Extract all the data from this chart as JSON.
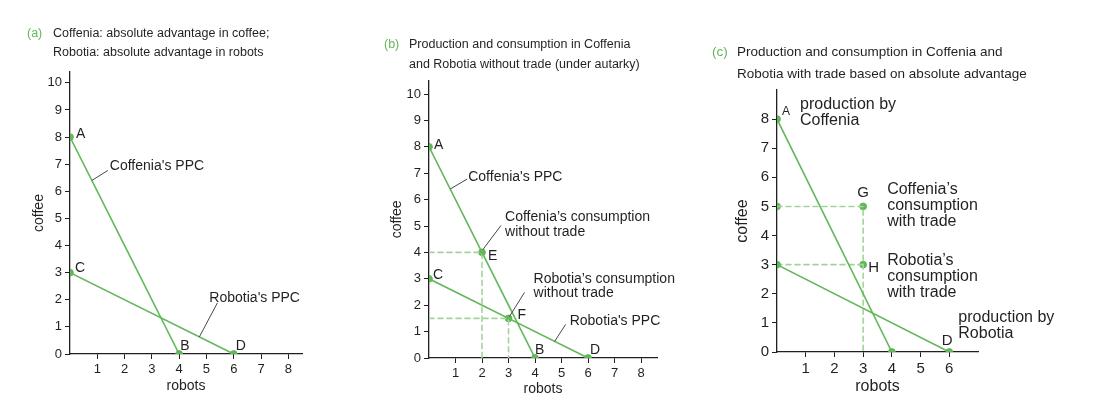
{
  "chart_data": [
    {
      "type": "line",
      "title": "(a) Coffenia: absolute advantage in coffee; Robotia: absolute advantage in robots",
      "xlabel": "robots",
      "ylabel": "coffee",
      "xlim": [
        0,
        8.5
      ],
      "xticks": [
        1,
        2,
        3,
        4,
        5,
        6,
        7,
        8
      ],
      "ylim": [
        0,
        10.4
      ],
      "yticks": [
        0,
        1,
        2,
        3,
        4,
        5,
        6,
        7,
        8,
        9,
        10
      ],
      "marker": "circle",
      "series": [
        {
          "name": "Coffenia's PPC",
          "color": "#62b75a",
          "x": [
            0,
            4
          ],
          "values": [
            8,
            0
          ]
        },
        {
          "name": "Robotia's PPC",
          "color": "#62b75a",
          "x": [
            0,
            6
          ],
          "values": [
            3,
            0
          ]
        }
      ],
      "annotations": [
        {
          "text": "A",
          "x": 0,
          "y": 8
        },
        {
          "text": "B",
          "x": 4,
          "y": 0
        },
        {
          "text": "C",
          "x": 0,
          "y": 3
        },
        {
          "text": "D",
          "x": 6,
          "y": 0
        }
      ]
    },
    {
      "type": "line",
      "title": "(b) Production and consumption in Coffenia and Robotia without trade (under autarky)",
      "xlabel": "robots",
      "ylabel": "coffee",
      "xlim": [
        0,
        8.6
      ],
      "xticks": [
        1,
        2,
        3,
        4,
        5,
        6,
        7,
        8
      ],
      "ylim": [
        0,
        10.5
      ],
      "yticks": [
        0,
        1,
        2,
        3,
        4,
        5,
        6,
        7,
        8,
        9,
        10
      ],
      "marker": "circle",
      "series": [
        {
          "name": "Coffenia's PPC",
          "color": "#62b75a",
          "x": [
            0,
            4
          ],
          "values": [
            8,
            0
          ]
        },
        {
          "name": "Robotia's PPC",
          "color": "#62b75a",
          "x": [
            0,
            6
          ],
          "values": [
            3,
            0
          ]
        },
        {
          "color": "#a3d49b",
          "x": [
            0,
            2,
            2
          ],
          "values": [
            4,
            4,
            0
          ],
          "line_style": "dashed",
          "marker": "none"
        },
        {
          "color": "#a3d49b",
          "x": [
            0,
            3,
            3
          ],
          "values": [
            1.5,
            1.5,
            0
          ],
          "line_style": "dashed",
          "marker": "none"
        },
        {
          "type": "scatter",
          "color": "#62b75a",
          "x": [
            2,
            3
          ],
          "values": [
            4,
            1.5
          ]
        }
      ],
      "annotations": [
        {
          "text": "A",
          "x": 0,
          "y": 8
        },
        {
          "text": "B",
          "x": 4,
          "y": 0
        },
        {
          "text": "C",
          "x": 0,
          "y": 3
        },
        {
          "text": "D",
          "x": 6,
          "y": 0
        },
        {
          "text": "E",
          "x": 2,
          "y": 4
        },
        {
          "text": "F",
          "x": 3,
          "y": 1.5
        },
        {
          "text": "Coffenia’s consumption without trade",
          "x": 2,
          "y": 4
        },
        {
          "text": "Robotia’s consumption without trade",
          "x": 3,
          "y": 1.5
        }
      ]
    },
    {
      "type": "line",
      "title": "(c) Production and consumption in Coffenia and Robotia with trade based on absolute advantage",
      "xlabel": "robots",
      "ylabel": "coffee",
      "xlim": [
        0,
        7
      ],
      "xticks": [
        1,
        2,
        3,
        4,
        5,
        6
      ],
      "ylim": [
        0,
        9
      ],
      "yticks": [
        0,
        1,
        2,
        3,
        4,
        5,
        6,
        7,
        8
      ],
      "marker": "circle",
      "series": [
        {
          "color": "#62b75a",
          "x": [
            0,
            4
          ],
          "values": [
            8,
            0
          ]
        },
        {
          "color": "#62b75a",
          "x": [
            0,
            6
          ],
          "values": [
            3,
            0
          ]
        },
        {
          "color": "#a3d49b",
          "x": [
            0,
            3,
            3
          ],
          "values": [
            5,
            5,
            0
          ],
          "line_style": "dashed",
          "marker": "none"
        },
        {
          "color": "#a3d49b",
          "x": [
            0,
            3
          ],
          "values": [
            3,
            3
          ],
          "line_style": "dashed",
          "marker": "none"
        },
        {
          "type": "scatter",
          "color": "#62b75a",
          "x": [
            0,
            3,
            3
          ],
          "values": [
            5,
            5,
            3
          ]
        }
      ],
      "annotations": [
        {
          "text": "A",
          "x": 0,
          "y": 8
        },
        {
          "text": "D",
          "x": 6,
          "y": 0
        },
        {
          "text": "G",
          "x": 3,
          "y": 5
        },
        {
          "text": "H",
          "x": 3,
          "y": 3
        },
        {
          "text": "production by Coffenia",
          "x": 0,
          "y": 8
        },
        {
          "text": "Coffenia’s consumption with trade",
          "x": 3,
          "y": 5
        },
        {
          "text": "Robotia’s consumption with trade",
          "x": 3,
          "y": 3
        },
        {
          "text": "production by Robotia",
          "x": 6,
          "y": 0
        }
      ]
    }
  ]
}
